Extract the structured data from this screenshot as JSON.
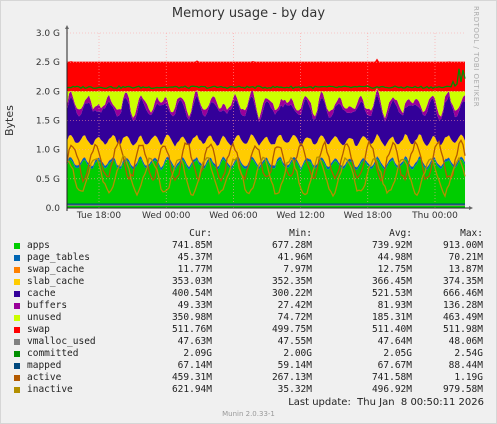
{
  "chart_data": {
    "type": "area",
    "title": "Memory usage - by day",
    "side_label": "RRDTOOL / TOBI OETIKER",
    "ylabel": "Bytes",
    "xlabel": "",
    "x_ticks": [
      "Tue 18:00",
      "Wed 00:00",
      "Wed 06:00",
      "Wed 12:00",
      "Wed 18:00",
      "Thu 00:00"
    ],
    "y_ticks": [
      "0.0",
      "0.5 G",
      "1.0 G",
      "1.5 G",
      "2.0 G",
      "2.5 G",
      "3.0 G"
    ],
    "ylim": [
      0,
      3.0
    ],
    "y_unit": "G",
    "grid": true,
    "stack_order": [
      "apps",
      "page_tables",
      "swap_cache",
      "slab_cache",
      "cache",
      "buffers",
      "unused",
      "swap"
    ],
    "line_series": [
      "vmalloc_used",
      "committed",
      "mapped",
      "active",
      "inactive"
    ],
    "columns": [
      "Cur:",
      "Min:",
      "Avg:",
      "Max:"
    ],
    "series": [
      {
        "name": "apps",
        "color": "#00cc00",
        "cur": "741.85M",
        "min": "677.28M",
        "avg": "739.92M",
        "max": "913.00M"
      },
      {
        "name": "page_tables",
        "color": "#0066b3",
        "cur": "45.37M",
        "min": "41.96M",
        "avg": "44.98M",
        "max": "70.21M"
      },
      {
        "name": "swap_cache",
        "color": "#ff8000",
        "cur": "11.77M",
        "min": "7.97M",
        "avg": "12.75M",
        "max": "13.87M"
      },
      {
        "name": "slab_cache",
        "color": "#ffcc00",
        "cur": "353.03M",
        "min": "352.35M",
        "avg": "366.45M",
        "max": "374.35M"
      },
      {
        "name": "cache",
        "color": "#330099",
        "cur": "400.54M",
        "min": "300.22M",
        "avg": "521.53M",
        "max": "666.46M"
      },
      {
        "name": "buffers",
        "color": "#990099",
        "cur": "49.33M",
        "min": "27.42M",
        "avg": "81.93M",
        "max": "136.28M"
      },
      {
        "name": "unused",
        "color": "#ccff00",
        "cur": "350.98M",
        "min": "74.72M",
        "avg": "185.31M",
        "max": "463.49M"
      },
      {
        "name": "swap",
        "color": "#ff0000",
        "cur": "511.76M",
        "min": "499.75M",
        "avg": "511.40M",
        "max": "511.98M"
      },
      {
        "name": "vmalloc_used",
        "color": "#808080",
        "cur": "47.63M",
        "min": "47.55M",
        "avg": "47.64M",
        "max": "48.06M"
      },
      {
        "name": "committed",
        "color": "#008f00",
        "cur": "2.09G",
        "min": "2.00G",
        "avg": "2.05G",
        "max": "2.54G"
      },
      {
        "name": "mapped",
        "color": "#00487d",
        "cur": "67.14M",
        "min": "59.14M",
        "avg": "67.67M",
        "max": "88.44M"
      },
      {
        "name": "active",
        "color": "#b35a00",
        "cur": "459.31M",
        "min": "267.13M",
        "avg": "741.58M",
        "max": "1.19G"
      },
      {
        "name": "inactive",
        "color": "#b38f00",
        "cur": "621.94M",
        "min": "35.32M",
        "avg": "496.92M",
        "max": "979.58M"
      }
    ],
    "last_update": "Last update:  Thu Jan  8 00:50:11 2026",
    "footer": "Munin 2.0.33-1"
  }
}
